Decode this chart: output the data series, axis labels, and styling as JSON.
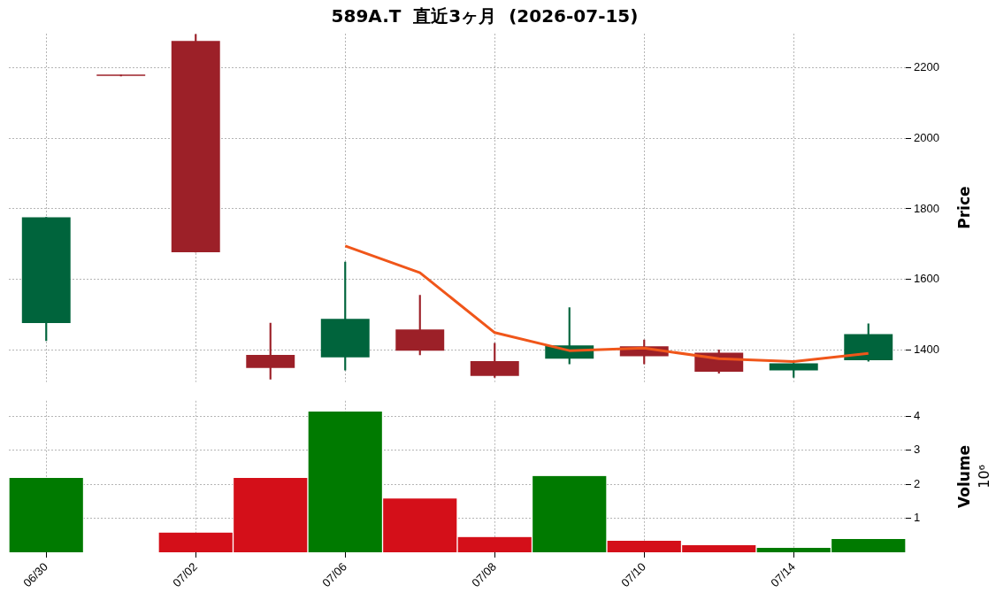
{
  "chart_data": [
    {
      "type": "candlestick",
      "title": "589A.T  直近3ヶ月  (2026-07-15)",
      "ylabel": "Price",
      "categories": [
        null,
        null,
        null,
        null,
        null,
        null,
        null,
        null,
        null,
        null,
        null,
        null
      ],
      "ohlc": [
        [
          1476,
          1776,
          1426,
          1776
        ],
        [
          2177,
          2177,
          2177,
          2177
        ],
        [
          2276,
          2295,
          1677,
          1677
        ],
        [
          1386,
          1476,
          1317,
          1349
        ],
        [
          1379,
          1649,
          1343,
          1488
        ],
        [
          1458,
          1555,
          1386,
          1398
        ],
        [
          1368,
          1419,
          1322,
          1326
        ],
        [
          1375,
          1520,
          1360,
          1413
        ],
        [
          1410,
          1428,
          1360,
          1382
        ],
        [
          1392,
          1400,
          1334,
          1338
        ],
        [
          1342,
          1362,
          1322,
          1362
        ],
        [
          1371,
          1474,
          1368,
          1445
        ]
      ],
      "colors": [
        "#00643c",
        "#9c2028",
        "#9c2028",
        "#9c2028",
        "#00643c",
        "#9c2028",
        "#9c2028",
        "#00643c",
        "#9c2028",
        "#9c2028",
        "#00643c",
        "#00643c"
      ],
      "series": [
        {
          "type": "line",
          "color": "#f0561a",
          "values": [
            null,
            null,
            null,
            null,
            1695,
            1619,
            1449,
            1398,
            1405,
            1375,
            1367,
            1390
          ]
        }
      ],
      "ylim": [
        1310,
        2297
      ],
      "yticks": [
        1400,
        1600,
        1800,
        2000,
        2200
      ],
      "grid": true,
      "legend": false,
      "tick_labels": "y"
    },
    {
      "type": "bar",
      "ylabel": "Volume",
      "annotations": [
        "10⁶"
      ],
      "categories": [
        "06/30",
        null,
        "07/02",
        null,
        "07/06",
        null,
        "07/08",
        null,
        "07/10",
        null,
        "07/14",
        null
      ],
      "values": [
        2.18,
        0,
        0.58,
        2.18,
        4.13,
        1.58,
        0.45,
        2.24,
        0.34,
        0.21,
        0.13,
        0.39
      ],
      "colors": [
        "#007a00",
        "#d40f19",
        "#d40f19",
        "#d40f19",
        "#007a00",
        "#d40f19",
        "#d40f19",
        "#007a00",
        "#d40f19",
        "#d40f19",
        "#007a00",
        "#007a00"
      ],
      "ylim": [
        0,
        4.45
      ],
      "yticks": [
        1,
        2,
        3,
        4
      ],
      "grid": true,
      "legend": false
    }
  ]
}
